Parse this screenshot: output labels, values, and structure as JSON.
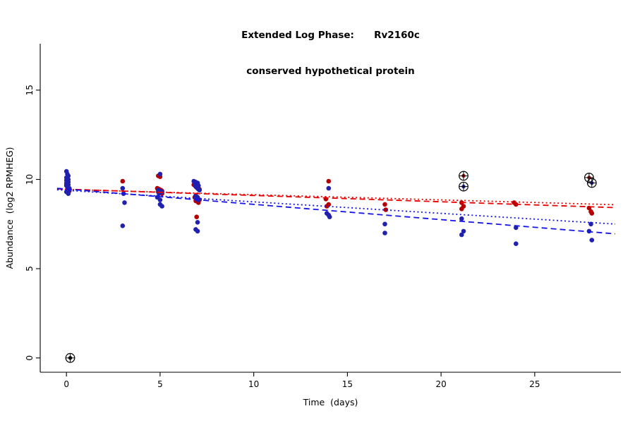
{
  "chart_data": {
    "type": "scatter",
    "title": "Extended Log Phase:      Rv2160c",
    "subtitle": "conserved hypothetical protein",
    "xlabel": "Time  (days)",
    "ylabel": "Abundance  (log2 RPMHEG)",
    "xlim": [
      -1.4,
      29.6
    ],
    "ylim": [
      -0.8,
      17.6
    ],
    "x_ticks": [
      0,
      5,
      10,
      15,
      20,
      25
    ],
    "y_ticks": [
      0,
      5,
      10,
      15
    ],
    "grid": false,
    "legend": "none",
    "series": [
      {
        "name": "red-series",
        "color": "#b40000",
        "points": [
          [
            0,
            9.7
          ],
          [
            0.05,
            9.6
          ],
          [
            0.1,
            9.5
          ],
          [
            0.05,
            9.45
          ],
          [
            0.1,
            9.4
          ],
          [
            0.15,
            9.35
          ],
          [
            0.1,
            9.3
          ],
          [
            3,
            9.9
          ],
          [
            4.9,
            10.2
          ],
          [
            5,
            10.15
          ],
          [
            4.85,
            9.5
          ],
          [
            4.95,
            9.45
          ],
          [
            5.05,
            9.4
          ],
          [
            5.1,
            9.35
          ],
          [
            4.9,
            9.3
          ],
          [
            5,
            9.25
          ],
          [
            5.1,
            9.2
          ],
          [
            6.8,
            9.7
          ],
          [
            6.9,
            9.6
          ],
          [
            6.95,
            9.55
          ],
          [
            7.05,
            9.5
          ],
          [
            7.1,
            9.45
          ],
          [
            6.85,
            9.0
          ],
          [
            6.95,
            8.95
          ],
          [
            7.05,
            8.9
          ],
          [
            7.1,
            8.85
          ],
          [
            6.9,
            8.8
          ],
          [
            7,
            8.75
          ],
          [
            7.05,
            8.7
          ],
          [
            6.95,
            7.9
          ],
          [
            14,
            9.9
          ],
          [
            13.85,
            8.9
          ],
          [
            14,
            8.6
          ],
          [
            13.9,
            8.5
          ],
          [
            17,
            8.6
          ],
          [
            17.05,
            8.3
          ],
          [
            21.1,
            8.7
          ],
          [
            21.2,
            8.5
          ],
          [
            21.1,
            8.35
          ],
          [
            23.9,
            8.7
          ],
          [
            24,
            8.6
          ],
          [
            27.9,
            8.4
          ],
          [
            28,
            8.2
          ],
          [
            28.05,
            8.1
          ]
        ]
      },
      {
        "name": "blue-series",
        "color": "#2121af",
        "points": [
          [
            0,
            10.45
          ],
          [
            0.05,
            10.3
          ],
          [
            0.1,
            10.2
          ],
          [
            0,
            10.1
          ],
          [
            0.05,
            10.05
          ],
          [
            0.1,
            10.0
          ],
          [
            0,
            9.95
          ],
          [
            0.05,
            9.9
          ],
          [
            0.1,
            9.85
          ],
          [
            0,
            9.8
          ],
          [
            0.05,
            9.75
          ],
          [
            0.1,
            9.7
          ],
          [
            0,
            9.65
          ],
          [
            0.05,
            9.6
          ],
          [
            0.1,
            9.55
          ],
          [
            0.15,
            9.5
          ],
          [
            0.05,
            9.45
          ],
          [
            0.15,
            9.4
          ],
          [
            0,
            9.3
          ],
          [
            0.1,
            9.2
          ],
          [
            3,
            9.5
          ],
          [
            3.05,
            9.2
          ],
          [
            3.1,
            8.7
          ],
          [
            3,
            7.4
          ],
          [
            5,
            10.3
          ],
          [
            4.9,
            9.4
          ],
          [
            5,
            9.35
          ],
          [
            5.1,
            9.3
          ],
          [
            4.95,
            9.2
          ],
          [
            4.85,
            9.0
          ],
          [
            5,
            8.85
          ],
          [
            5,
            8.6
          ],
          [
            5.1,
            8.5
          ],
          [
            6.8,
            9.9
          ],
          [
            6.9,
            9.85
          ],
          [
            7,
            9.8
          ],
          [
            6.85,
            9.75
          ],
          [
            6.95,
            9.7
          ],
          [
            7.05,
            9.65
          ],
          [
            6.9,
            9.6
          ],
          [
            7,
            9.5
          ],
          [
            7.05,
            9.45
          ],
          [
            7.1,
            9.4
          ],
          [
            6.9,
            9.1
          ],
          [
            7,
            9.0
          ],
          [
            6.95,
            8.9
          ],
          [
            7.05,
            8.85
          ],
          [
            7,
            7.6
          ],
          [
            6.9,
            7.2
          ],
          [
            7,
            7.1
          ],
          [
            14,
            9.5
          ],
          [
            13.9,
            8.1
          ],
          [
            14,
            8.0
          ],
          [
            14.05,
            7.9
          ],
          [
            17,
            7.5
          ],
          [
            17,
            7.0
          ],
          [
            21.1,
            7.8
          ],
          [
            21.2,
            7.1
          ],
          [
            21.1,
            6.9
          ],
          [
            24,
            7.3
          ],
          [
            24,
            6.4
          ],
          [
            28,
            7.5
          ],
          [
            27.9,
            7.1
          ],
          [
            28.05,
            6.6
          ]
        ]
      }
    ],
    "circled_outliers": [
      {
        "x": 0.2,
        "y": 0,
        "color": "#000000"
      },
      {
        "x": 21.2,
        "y": 10.2,
        "color": "#b40000"
      },
      {
        "x": 21.2,
        "y": 9.6,
        "color": "#2121af"
      },
      {
        "x": 27.9,
        "y": 10.1,
        "color": "#b40000"
      },
      {
        "x": 28.05,
        "y": 9.8,
        "color": "#2121af"
      }
    ],
    "trend_lines": [
      {
        "name": "red-dashed-fit",
        "color": "#e60000",
        "style": "dashed",
        "x": [
          -0.5,
          29.3
        ],
        "y": [
          9.47,
          8.42
        ]
      },
      {
        "name": "red-dotted-fit",
        "color": "#e60000",
        "style": "dotted",
        "x": [
          -0.5,
          29.3
        ],
        "y": [
          9.45,
          8.58
        ]
      },
      {
        "name": "blue-dashed-fit",
        "color": "#1414e6",
        "style": "dashed",
        "x": [
          -0.5,
          29.3
        ],
        "y": [
          9.5,
          6.95
        ]
      },
      {
        "name": "blue-dotted-fit",
        "color": "#1414e6",
        "style": "dotted",
        "x": [
          -0.5,
          29.3
        ],
        "y": [
          9.42,
          7.5
        ]
      }
    ]
  }
}
